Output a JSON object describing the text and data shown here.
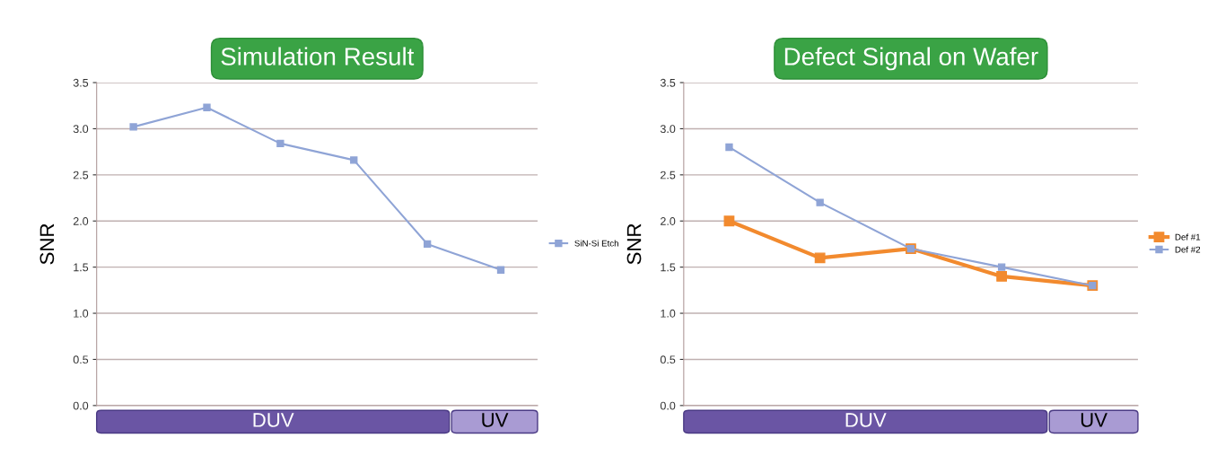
{
  "chart_data": [
    {
      "type": "line",
      "title": "Simulation Result",
      "ylabel": "SNR",
      "categories": [
        null,
        null,
        null,
        null,
        null,
        null
      ],
      "series": [
        {
          "name": "SiN-Si Etch",
          "color": "#8fa4d6",
          "values": [
            3.02,
            3.23,
            2.84,
            2.66,
            1.75,
            1.47
          ]
        }
      ],
      "ylim": [
        0,
        3.5
      ],
      "yticks": [
        {
          "value": 0,
          "label": "0.0"
        },
        {
          "value": 0.5,
          "label": "0.5"
        },
        {
          "value": 1,
          "label": "1.0"
        },
        {
          "value": 1.5,
          "label": "1.5"
        },
        {
          "value": 2,
          "label": "2.0"
        },
        {
          "value": 2.5,
          "label": "2.5"
        },
        {
          "value": 3,
          "label": "3.0"
        },
        {
          "value": 3.5,
          "label": "3.5"
        }
      ],
      "grid": "y",
      "legend": "right",
      "marker": "square",
      "line_style": "solid",
      "tick_labels": "y",
      "annotations": [
        "DUV",
        "UV"
      ]
    },
    {
      "type": "line",
      "title": "Defect Signal on Wafer",
      "ylabel": "SNR",
      "categories": [
        null,
        null,
        null,
        null,
        null
      ],
      "series": [
        {
          "name": "Def #1",
          "color": "#f28a2e",
          "values": [
            2.0,
            1.6,
            1.7,
            1.4,
            1.3
          ]
        },
        {
          "name": "Def #2",
          "color": "#8fa4d6",
          "values": [
            2.8,
            2.2,
            1.7,
            1.5,
            1.3
          ]
        }
      ],
      "ylim": [
        0,
        3.5
      ],
      "yticks": [
        {
          "value": 0,
          "label": "0.0"
        },
        {
          "value": 0.5,
          "label": "0.5"
        },
        {
          "value": 1,
          "label": "1.0"
        },
        {
          "value": 1.5,
          "label": "1.5"
        },
        {
          "value": 2,
          "label": "2.0"
        },
        {
          "value": 2.5,
          "label": "2.5"
        },
        {
          "value": 3,
          "label": "3.0"
        },
        {
          "value": 3.5,
          "label": "3.5"
        }
      ],
      "grid": "y",
      "legend": "right",
      "marker": "square",
      "line_style": "solid",
      "tick_labels": "y",
      "annotations": [
        "DUV",
        "UV"
      ]
    }
  ]
}
